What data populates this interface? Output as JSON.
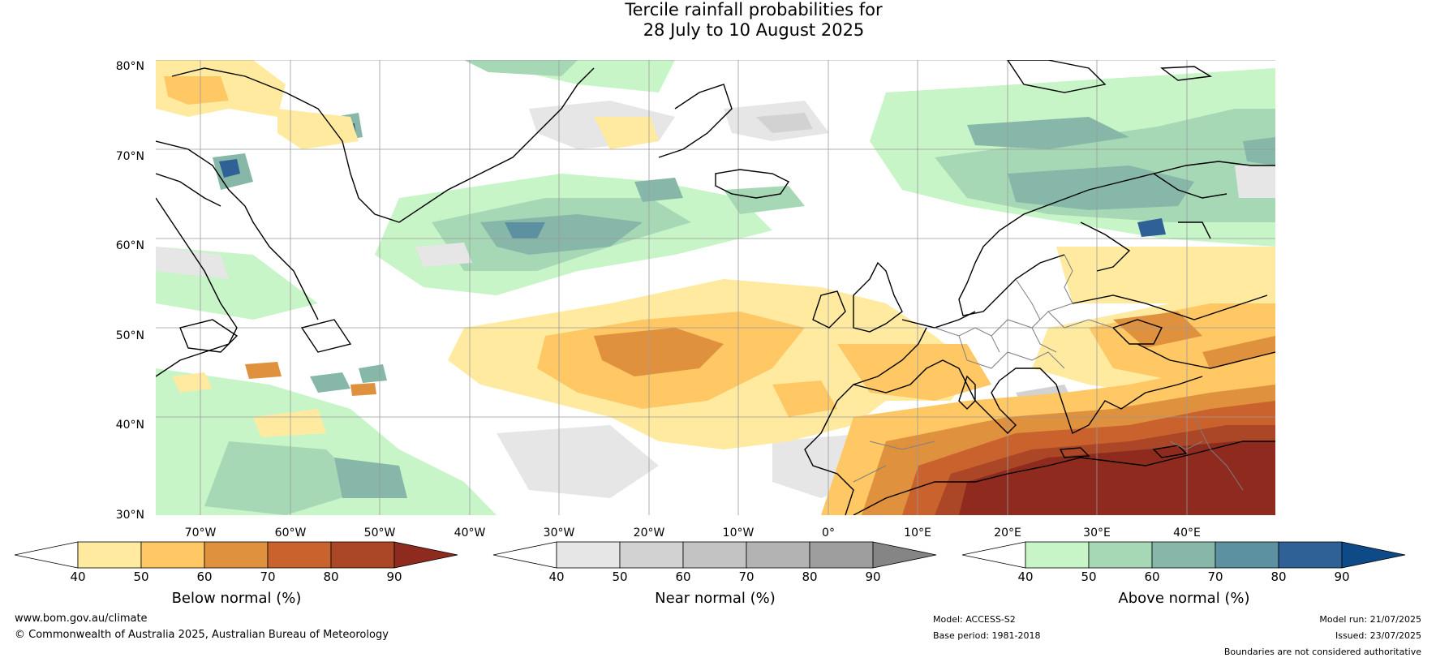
{
  "title": {
    "line1": "Tercile rainfall probabilities for",
    "line2": "28 July to 10 August 2025"
  },
  "map": {
    "lat_labels": [
      "80°N",
      "70°N",
      "60°N",
      "50°N",
      "40°N",
      "30°N"
    ],
    "lon_labels": [
      "70°W",
      "60°W",
      "50°W",
      "40°W",
      "30°W",
      "20°W",
      "10°W",
      "0°",
      "10°E",
      "20°E",
      "30°E",
      "40°E"
    ]
  },
  "colorbars": [
    {
      "label": "Below normal (%)",
      "ticks": [
        "40",
        "50",
        "60",
        "70",
        "80",
        "90"
      ],
      "colors": [
        "#ffeaa0",
        "#ffc864",
        "#e0913e",
        "#c9622c",
        "#ab4627",
        "#8e2b1e"
      ],
      "low_color": "#ffffff"
    },
    {
      "label": "Near normal (%)",
      "ticks": [
        "40",
        "50",
        "60",
        "70",
        "80",
        "90"
      ],
      "colors": [
        "#e6e6e6",
        "#d2d2d2",
        "#c3c3c3",
        "#b3b3b3",
        "#9e9e9e",
        "#858585"
      ],
      "low_color": "#ffffff"
    },
    {
      "label": "Above normal (%)",
      "ticks": [
        "40",
        "50",
        "60",
        "70",
        "80",
        "90"
      ],
      "colors": [
        "#c7f5c7",
        "#a6d8b6",
        "#86b7a9",
        "#5b91a0",
        "#2f6096",
        "#0e4a87"
      ],
      "low_color": "#ffffff"
    }
  ],
  "footer": {
    "website": "www.bom.gov.au/climate",
    "copyright": "© Commonwealth of Australia 2025, Australian Bureau of Meteorology",
    "model": "Model: ACCESS-S2",
    "base_period": "Base period: 1981-2018",
    "model_run": "Model run: 21/07/2025",
    "issued": "Issued: 23/07/2025",
    "disclaimer": "Boundaries are not considered authoritative"
  }
}
